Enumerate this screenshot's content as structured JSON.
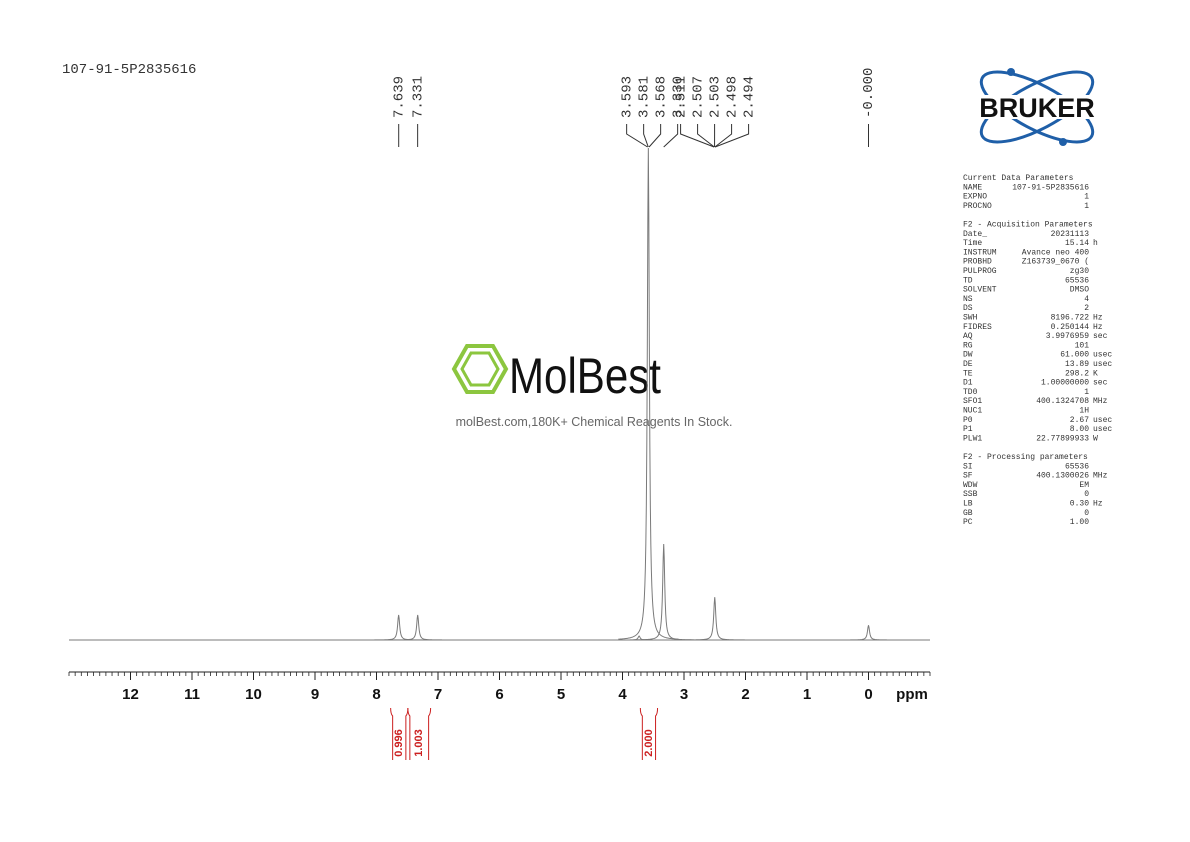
{
  "chart_data": {
    "type": "spectrum",
    "title": "107-91-5P2835616",
    "x_label": "ppm",
    "xlim": [
      13,
      -1
    ],
    "xticks": [
      12,
      11,
      10,
      9,
      8,
      7,
      6,
      5,
      4,
      3,
      2,
      1,
      0
    ],
    "xminor": 0.1,
    "ylim": [
      0,
      100
    ],
    "color": "#7a7a7a",
    "x": [
      7.64,
      7.33,
      3.73,
      3.58,
      3.33,
      2.5,
      0.0
    ],
    "values": [
      5.1,
      5.1,
      0.8,
      100,
      19.5,
      8.7,
      3.0
    ],
    "peak_labels": [
      7.639,
      7.331,
      3.593,
      3.581,
      3.568,
      {
        "value": 3.33,
        "label": "3.330"
      },
      2.511,
      2.507,
      2.503,
      2.498,
      2.494,
      {
        "value": 0,
        "label": "-0.000"
      }
    ],
    "integrals": {
      "ranges": [
        [
          7.77,
          7.49
        ],
        [
          7.49,
          7.12
        ],
        [
          3.71,
          3.43
        ]
      ],
      "values": [
        0.996,
        1.003,
        2
      ],
      "value_labels": [
        "0.996",
        "1.003",
        "2.000"
      ],
      "color": "#cc1f1f"
    }
  },
  "watermark": {
    "brand": "MolBest",
    "tagline": "molBest.com,180K+ Chemical Reagents In Stock."
  },
  "logo": "BRUKER",
  "parameters": [
    {
      "title": "Current Data Parameters",
      "rows": [
        [
          "NAME",
          "107-91-5P2835616"
        ],
        [
          "EXPNO",
          "1"
        ],
        [
          "PROCNO",
          "1"
        ]
      ]
    },
    {
      "title": "F2 - Acquisition Parameters",
      "rows": [
        [
          "Date_",
          "20231113"
        ],
        [
          "Time",
          "15.14",
          "h"
        ],
        [
          "INSTRUM",
          "Avance neo 400"
        ],
        [
          "PROBHD",
          "Z163739_0670 ("
        ],
        [
          "PULPROG",
          "zg30"
        ],
        [
          "TD",
          "65536"
        ],
        [
          "SOLVENT",
          "DMSO"
        ],
        [
          "NS",
          "4"
        ],
        [
          "DS",
          "2"
        ],
        [
          "SWH",
          "8196.722",
          "Hz"
        ],
        [
          "FIDRES",
          "0.250144",
          "Hz"
        ],
        [
          "AQ",
          "3.9976959",
          "sec"
        ],
        [
          "RG",
          "101"
        ],
        [
          "DW",
          "61.000",
          "usec"
        ],
        [
          "DE",
          "13.89",
          "usec"
        ],
        [
          "TE",
          "298.2",
          "K"
        ],
        [
          "D1",
          "1.00000000",
          "sec"
        ],
        [
          "TD0",
          "1"
        ],
        [
          "SFO1",
          "400.1324708",
          "MHz"
        ],
        [
          "NUC1",
          "1H"
        ],
        [
          "P0",
          "2.67",
          "usec"
        ],
        [
          "P1",
          "8.00",
          "usec"
        ],
        [
          "PLW1",
          "22.77899933",
          "W"
        ]
      ]
    },
    {
      "title": "F2 - Processing parameters",
      "rows": [
        [
          "SI",
          "65536"
        ],
        [
          "SF",
          "400.1300026",
          "MHz"
        ],
        [
          "WDW",
          "EM"
        ],
        [
          "SSB",
          "0"
        ],
        [
          "LB",
          "0.30",
          "Hz"
        ],
        [
          "GB",
          "0"
        ],
        [
          "PC",
          "1.00"
        ]
      ]
    }
  ]
}
